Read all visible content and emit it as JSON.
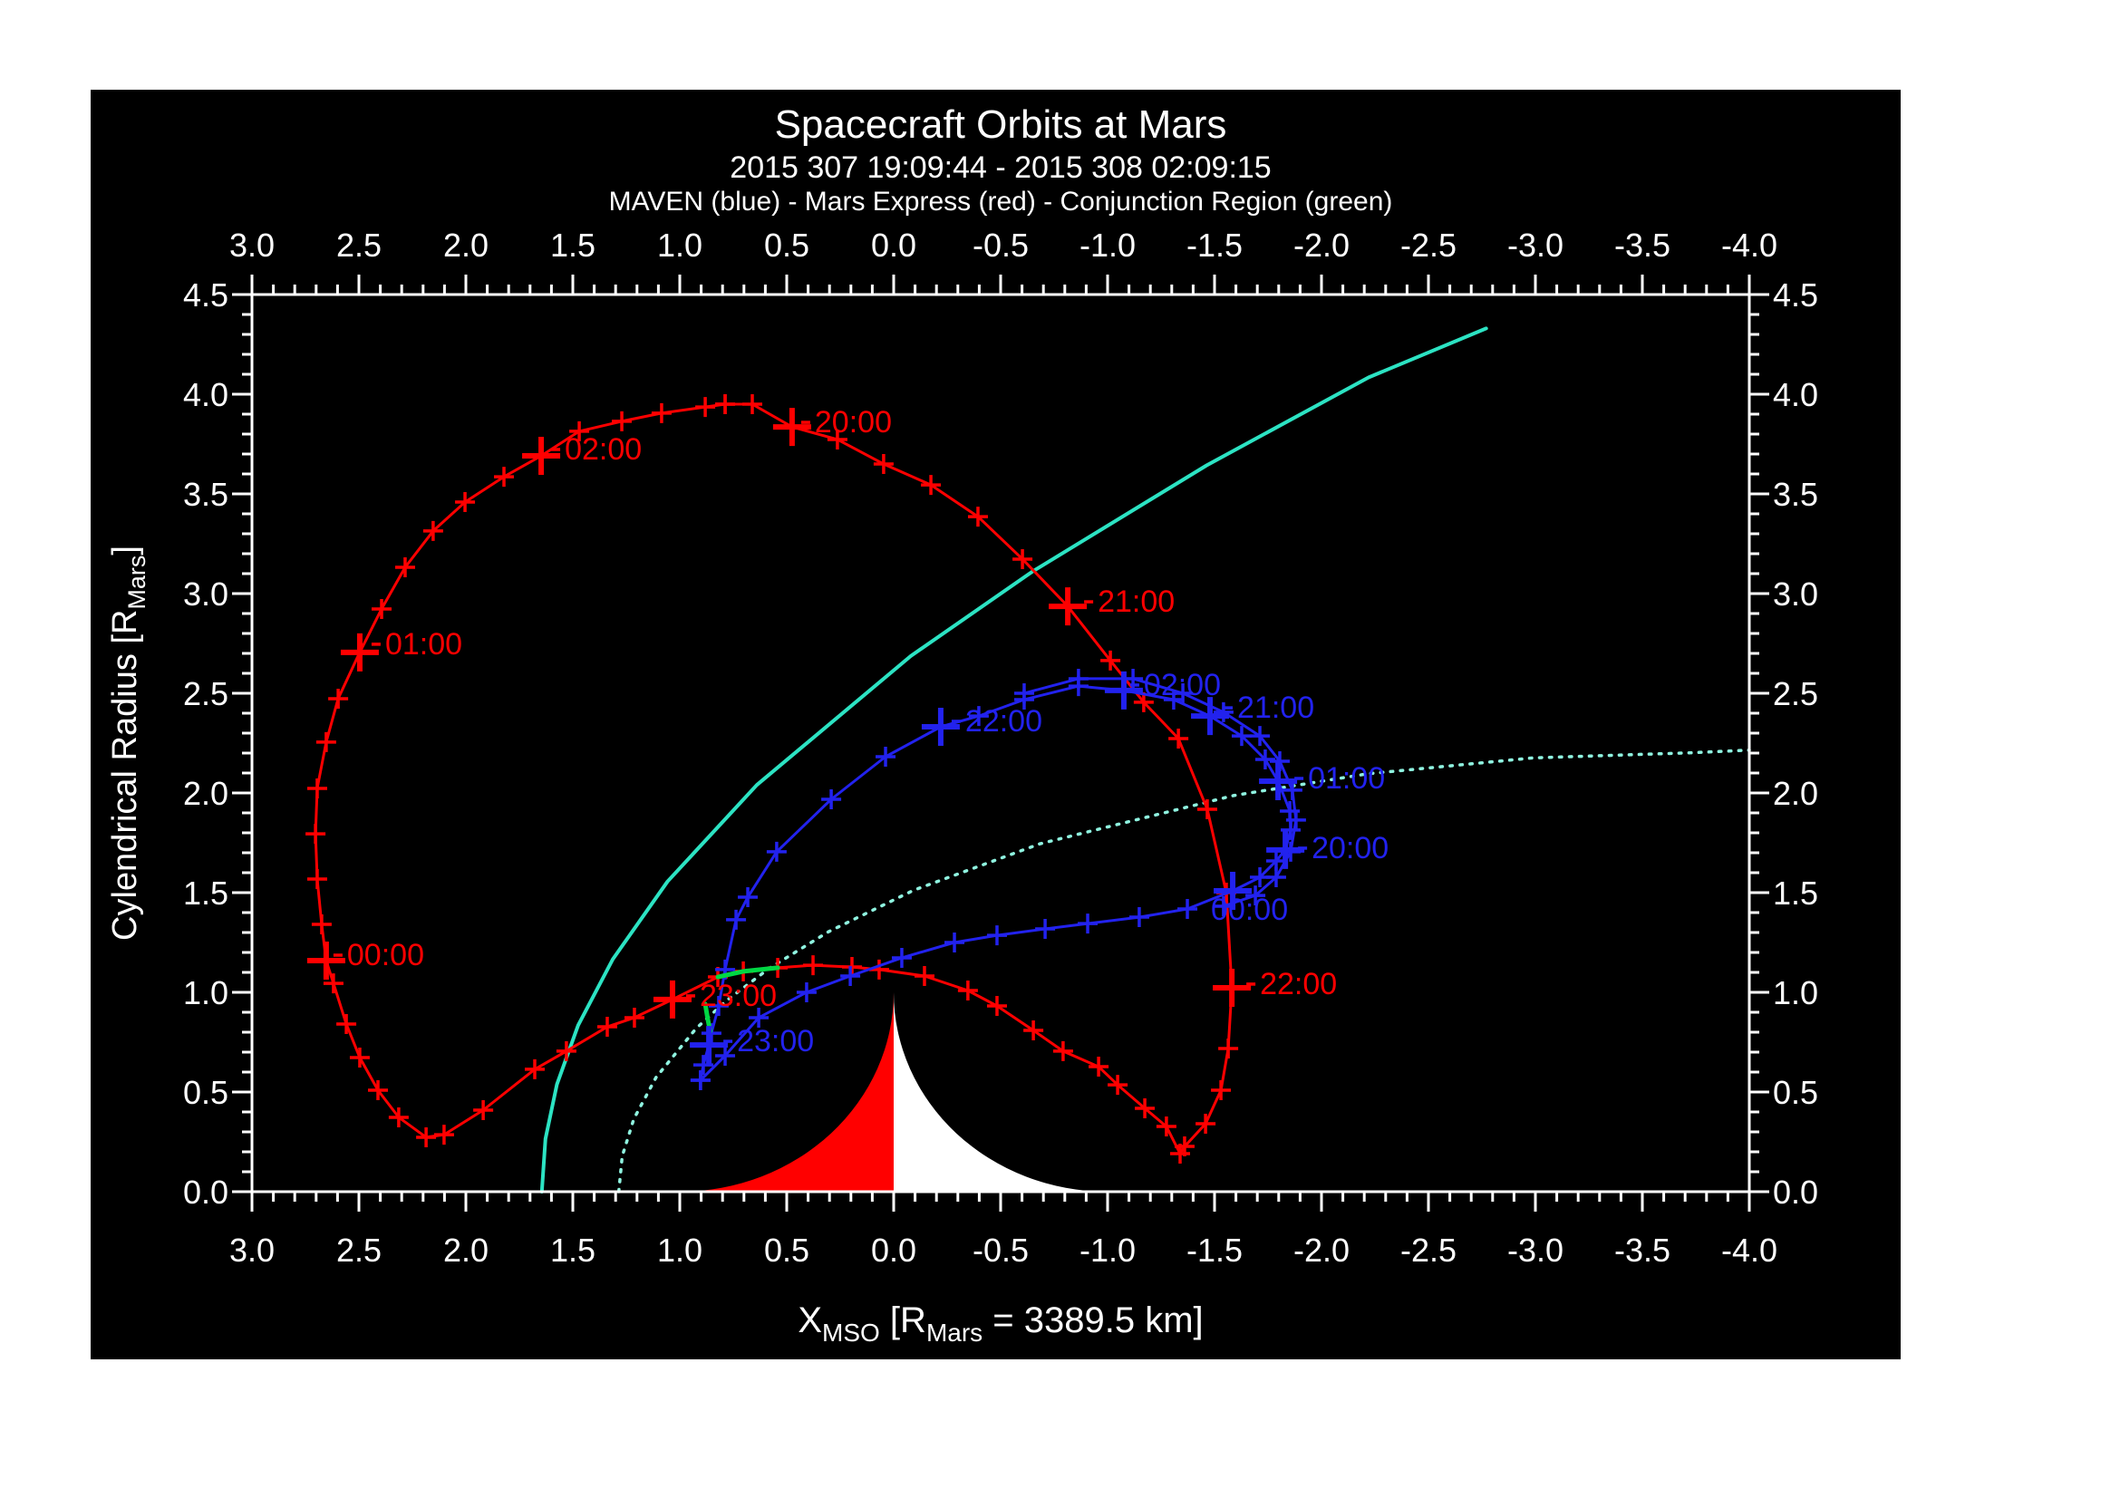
{
  "chart_data": {
    "type": "line",
    "title": "Spacecraft Orbits at Mars",
    "subtitle": "2015 307 19:09:44 - 2015 308 02:09:15",
    "legend": "MAVEN (blue) - Mars Express (red) - Conjunction Region (green)",
    "xlabel": "X_MSO [R_Mars = 3389.5 km]",
    "xlabel_parts": [
      [
        "X",
        0
      ],
      [
        "MSO",
        1
      ],
      [
        " [R",
        0
      ],
      [
        "Mars",
        1
      ],
      [
        " = 3389.5 km]",
        0
      ]
    ],
    "ylabel": "Cylendrical Radius [R_Mars]",
    "ylabel_parts": [
      [
        "Cylendrical Radius [R",
        0
      ],
      [
        "Mars",
        1
      ],
      [
        "]",
        0
      ]
    ],
    "xlim": [
      3.0,
      -4.0
    ],
    "ylim": [
      0.0,
      4.5
    ],
    "grid": false,
    "x_tick_labels": [
      "3.0",
      "2.5",
      "2.0",
      "1.5",
      "1.0",
      "0.5",
      "0.0",
      "-0.5",
      "-1.0",
      "-1.5",
      "-2.0",
      "-2.5",
      "-3.0",
      "-3.5",
      "-4.0"
    ],
    "x_tick_values": [
      3.0,
      2.5,
      2.0,
      1.5,
      1.0,
      0.5,
      0.0,
      -0.5,
      -1.0,
      -1.5,
      -2.0,
      -2.5,
      -3.0,
      -3.5,
      -4.0
    ],
    "y_tick_labels": [
      "0.0",
      "0.5",
      "1.0",
      "1.5",
      "2.0",
      "2.5",
      "3.0",
      "3.5",
      "4.0",
      "4.5"
    ],
    "y_tick_values": [
      0.0,
      0.5,
      1.0,
      1.5,
      2.0,
      2.5,
      3.0,
      3.5,
      4.0,
      4.5
    ],
    "minor_tick_step": 0.1,
    "colors": {
      "background": "#000000",
      "frame": "#ffffff",
      "maven": "#2222ee",
      "mars_express": "#ff0000",
      "conjunction": "#00d743",
      "bow_shock": "#2ce3c3",
      "mpb": "#8ff4e0",
      "mars_dayside": "#ff0000",
      "mars_nightside": "#ffffff"
    },
    "mars": {
      "radius": 1.0,
      "dayside": "sunward (+X) half red",
      "nightside": "anti-sunward half white"
    },
    "series": [
      {
        "name": "Mars Express",
        "color": "#ff0000",
        "points": [
          [
            0.788,
            3.95
          ],
          [
            0.661,
            3.95
          ],
          [
            0.475,
            3.836
          ],
          [
            0.263,
            3.773
          ],
          [
            0.047,
            3.65
          ],
          [
            -0.174,
            3.545
          ],
          [
            -0.394,
            3.386
          ],
          [
            -0.602,
            3.173
          ],
          [
            -0.814,
            2.936
          ],
          [
            -1.013,
            2.664
          ],
          [
            -1.169,
            2.455
          ],
          [
            -1.331,
            2.273
          ],
          [
            -1.466,
            1.918
          ],
          [
            -1.555,
            1.5
          ],
          [
            -1.581,
            1.023
          ],
          [
            -1.564,
            0.718
          ],
          [
            -1.53,
            0.509
          ],
          [
            -1.458,
            0.341
          ],
          [
            -1.36,
            0.227
          ],
          [
            -1.339,
            0.191
          ],
          [
            -1.275,
            0.327
          ],
          [
            -1.174,
            0.418
          ],
          [
            -1.047,
            0.536
          ],
          [
            -0.958,
            0.627
          ],
          [
            -0.792,
            0.705
          ],
          [
            -0.653,
            0.809
          ],
          [
            -0.483,
            0.932
          ],
          [
            -0.347,
            1.009
          ],
          [
            -0.144,
            1.082
          ],
          [
            0.068,
            1.114
          ],
          [
            0.195,
            1.127
          ],
          [
            0.377,
            1.136
          ],
          [
            0.542,
            1.123
          ],
          [
            0.703,
            1.105
          ],
          [
            0.822,
            1.077
          ],
          [
            1.034,
            0.964
          ],
          [
            1.212,
            0.873
          ],
          [
            1.339,
            0.827
          ],
          [
            1.53,
            0.705
          ],
          [
            1.678,
            0.614
          ],
          [
            1.919,
            0.409
          ],
          [
            2.102,
            0.286
          ],
          [
            2.186,
            0.273
          ],
          [
            2.314,
            0.373
          ],
          [
            2.411,
            0.509
          ],
          [
            2.496,
            0.673
          ],
          [
            2.559,
            0.841
          ],
          [
            2.619,
            1.045
          ],
          [
            2.653,
            1.159
          ],
          [
            2.674,
            1.341
          ],
          [
            2.695,
            1.568
          ],
          [
            2.703,
            1.795
          ],
          [
            2.695,
            2.023
          ],
          [
            2.653,
            2.255
          ],
          [
            2.597,
            2.473
          ],
          [
            2.496,
            2.705
          ],
          [
            2.394,
            2.923
          ],
          [
            2.284,
            3.132
          ],
          [
            2.153,
            3.314
          ],
          [
            2.004,
            3.459
          ],
          [
            1.822,
            3.586
          ],
          [
            1.648,
            3.691
          ],
          [
            1.47,
            3.814
          ],
          [
            1.271,
            3.864
          ],
          [
            1.085,
            3.905
          ],
          [
            0.881,
            3.936
          ],
          [
            0.788,
            3.95
          ]
        ],
        "hour_marks": [
          {
            "label": "20:00",
            "x": 0.475,
            "r": 3.836,
            "dx": 25,
            "dy": 6
          },
          {
            "label": "21:00",
            "x": -0.814,
            "r": 2.936,
            "dx": 33,
            "dy": 6
          },
          {
            "label": "22:00",
            "x": -1.581,
            "r": 1.023,
            "dx": 31,
            "dy": 7
          },
          {
            "label": "23:00",
            "x": 1.034,
            "r": 0.964,
            "dx": 30,
            "dy": 7
          },
          {
            "label": "00:00",
            "x": 2.653,
            "r": 1.159,
            "dx": 23,
            "dy": 5
          },
          {
            "label": "01:00",
            "x": 2.496,
            "r": 2.705,
            "dx": 28,
            "dy": 2
          },
          {
            "label": "02:00",
            "x": 1.648,
            "r": 3.691,
            "dx": 26,
            "dy": 4
          }
        ]
      },
      {
        "name": "MAVEN",
        "color": "#2222ee",
        "points": [
          [
            0.903,
            0.559
          ],
          [
            0.788,
            0.682
          ],
          [
            0.631,
            0.873
          ],
          [
            0.407,
            1.0
          ],
          [
            0.203,
            1.082
          ],
          [
            -0.038,
            1.173
          ],
          [
            -0.284,
            1.25
          ],
          [
            -0.483,
            1.286
          ],
          [
            -0.708,
            1.318
          ],
          [
            -0.907,
            1.345
          ],
          [
            -1.148,
            1.377
          ],
          [
            -1.373,
            1.418
          ],
          [
            -1.585,
            1.509
          ],
          [
            -1.712,
            1.577
          ],
          [
            -1.788,
            1.659
          ],
          [
            -1.831,
            1.714
          ],
          [
            -1.856,
            1.814
          ],
          [
            -1.852,
            1.909
          ],
          [
            -1.797,
            2.059
          ],
          [
            -1.737,
            2.168
          ],
          [
            -1.627,
            2.286
          ],
          [
            -1.479,
            2.386
          ],
          [
            -1.309,
            2.468
          ],
          [
            -1.076,
            2.514
          ],
          [
            -0.864,
            2.536
          ],
          [
            -0.61,
            2.468
          ],
          [
            -0.398,
            2.386
          ],
          [
            -0.22,
            2.332
          ],
          [
            0.038,
            2.182
          ],
          [
            0.292,
            1.968
          ],
          [
            0.547,
            1.705
          ],
          [
            0.682,
            1.477
          ],
          [
            0.737,
            1.364
          ],
          [
            0.788,
            1.114
          ],
          [
            0.818,
            0.932
          ],
          [
            0.852,
            0.795
          ],
          [
            0.864,
            0.736
          ],
          [
            0.89,
            0.636
          ],
          [
            0.903,
            0.559
          ]
        ],
        "hour_marks": [
          {
            "label": "20:00",
            "x": -1.831,
            "r": 1.714,
            "dx": 29,
            "dy": 9
          },
          {
            "label": "21:00",
            "x": -1.479,
            "r": 2.386,
            "dx": 30,
            "dy": 2
          },
          {
            "label": "22:00",
            "x": -0.22,
            "r": 2.332,
            "dx": 27,
            "dy": 5
          },
          {
            "label": "23:00",
            "x": 0.864,
            "r": 0.736,
            "dx": 31,
            "dy": 7
          },
          {
            "label": "00:00",
            "x": -1.585,
            "r": 1.509,
            "dx": -24,
            "dy": 32
          },
          {
            "label": "01:00",
            "x": -1.797,
            "r": 2.059,
            "dx": 33,
            "dy": 8
          },
          {
            "label": "02:00",
            "x": -1.076,
            "r": 2.514,
            "dx": 22,
            "dy": 5
          }
        ]
      },
      {
        "name": "MAVEN second pass",
        "color": "#2222ee",
        "points": [
          [
            -0.61,
            2.5
          ],
          [
            -0.864,
            2.573
          ],
          [
            -1.119,
            2.573
          ],
          [
            -1.352,
            2.5
          ],
          [
            -1.542,
            2.405
          ],
          [
            -1.712,
            2.286
          ],
          [
            -1.805,
            2.159
          ],
          [
            -1.864,
            2.014
          ],
          [
            -1.881,
            1.864
          ],
          [
            -1.856,
            1.705
          ],
          [
            -1.788,
            1.577
          ],
          [
            -1.691,
            1.486
          ],
          [
            -1.542,
            1.432
          ]
        ],
        "hour_marks": []
      }
    ],
    "boundaries": [
      {
        "name": "bow shock",
        "style": "solid",
        "color": "#2ce3c3",
        "points": [
          [
            1.645,
            0.0
          ],
          [
            1.628,
            0.265
          ],
          [
            1.574,
            0.539
          ],
          [
            1.475,
            0.835
          ],
          [
            1.313,
            1.166
          ],
          [
            1.057,
            1.556
          ],
          [
            0.64,
            2.04
          ],
          [
            -0.08,
            2.687
          ],
          [
            -0.649,
            3.111
          ],
          [
            -1.463,
            3.643
          ],
          [
            -2.22,
            4.084
          ],
          [
            -2.77,
            4.33
          ]
        ]
      },
      {
        "name": "magnetic pileup boundary",
        "style": "dotted",
        "color": "#8ff4e0",
        "points": [
          [
            1.285,
            0.0
          ],
          [
            1.269,
            0.178
          ],
          [
            1.215,
            0.365
          ],
          [
            1.111,
            0.573
          ],
          [
            0.924,
            0.818
          ],
          [
            0.78,
            0.96
          ],
          [
            0.582,
            1.12
          ],
          [
            0.306,
            1.303
          ],
          [
            -0.093,
            1.512
          ],
          [
            -0.684,
            1.745
          ],
          [
            -1.588,
            1.987
          ],
          [
            -2.214,
            2.096
          ],
          [
            -2.989,
            2.176
          ],
          [
            -3.735,
            2.202
          ],
          [
            -4.0,
            2.215
          ]
        ]
      }
    ],
    "conjunction_segments": [
      {
        "on": "Mars Express",
        "points": [
          [
            0.822,
            1.077
          ],
          [
            0.703,
            1.105
          ],
          [
            0.542,
            1.123
          ]
        ]
      },
      {
        "on": "MAVEN",
        "points": [
          [
            0.881,
            0.941
          ],
          [
            0.87,
            0.87
          ],
          [
            0.858,
            0.805
          ]
        ]
      }
    ]
  }
}
